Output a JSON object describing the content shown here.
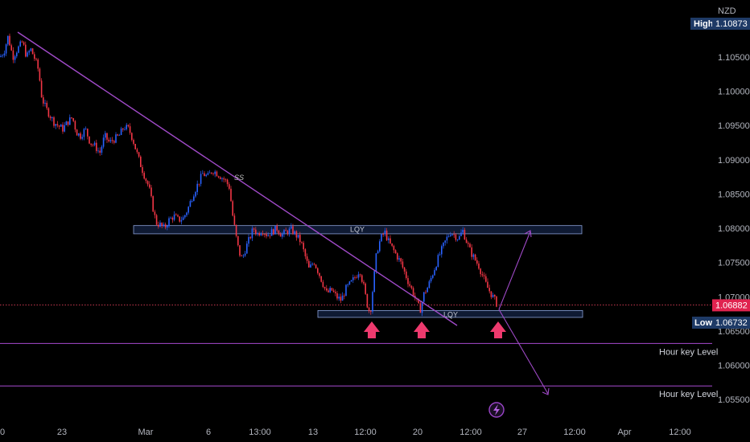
{
  "chart_data": {
    "type": "candlestick",
    "currency": "NZD",
    "y_ticks": [
      "1.10500",
      "1.10000",
      "1.09500",
      "1.09000",
      "1.08500",
      "1.08000",
      "1.07500",
      "1.07000",
      "1.06500",
      "1.06000",
      "1.05500"
    ],
    "ylim": [
      1.0528,
      1.1125
    ],
    "x_ticks": [
      "0",
      "23",
      "Mar",
      "6",
      "13:00",
      "13",
      "12:00",
      "20",
      "12:00",
      "27",
      "12:00",
      "Apr",
      "12:00"
    ],
    "high": {
      "label": "High",
      "value": "1.10873"
    },
    "low": {
      "label": "Low",
      "value": "1.06732"
    },
    "last": {
      "value": "1.06882",
      "price": 1.06882
    },
    "zones": [
      {
        "label": "LQY",
        "top": 1.0804,
        "bottom": 1.0792
      },
      {
        "label": "LQY",
        "top": 1.068,
        "bottom": 1.067
      }
    ],
    "key_levels": [
      {
        "label": "Hour key Level",
        "price": 1.0632
      },
      {
        "label": "Hour key Level",
        "price": 1.057
      }
    ],
    "trendline_label": "SS",
    "price_path": [
      [
        0,
        1.105
      ],
      [
        5,
        1.1058
      ],
      [
        10,
        1.108
      ],
      [
        16,
        1.105
      ],
      [
        22,
        1.1062
      ],
      [
        28,
        1.1072
      ],
      [
        33,
        1.105
      ],
      [
        38,
        1.1062
      ],
      [
        44,
        1.1045
      ],
      [
        48,
        1.103
      ],
      [
        52,
        1.099
      ],
      [
        57,
        1.0975
      ],
      [
        62,
        1.0965
      ],
      [
        67,
        1.0955
      ],
      [
        72,
        1.095
      ],
      [
        78,
        1.0945
      ],
      [
        84,
        1.0955
      ],
      [
        90,
        1.0962
      ],
      [
        95,
        1.094
      ],
      [
        100,
        1.0935
      ],
      [
        106,
        1.0945
      ],
      [
        112,
        1.0925
      ],
      [
        118,
        1.092
      ],
      [
        124,
        1.091
      ],
      [
        130,
        1.0935
      ],
      [
        136,
        1.0925
      ],
      [
        142,
        1.093
      ],
      [
        148,
        1.0935
      ],
      [
        154,
        1.0948
      ],
      [
        160,
        1.0945
      ],
      [
        165,
        1.093
      ],
      [
        170,
        1.091
      ],
      [
        174,
        1.0895
      ],
      [
        180,
        1.0875
      ],
      [
        185,
        1.086
      ],
      [
        190,
        1.083
      ],
      [
        194,
        1.0808
      ],
      [
        199,
        1.0805
      ],
      [
        204,
        1.08
      ],
      [
        210,
        1.0812
      ],
      [
        216,
        1.0818
      ],
      [
        222,
        1.0812
      ],
      [
        228,
        1.0815
      ],
      [
        234,
        1.083
      ],
      [
        240,
        1.085
      ],
      [
        246,
        1.0865
      ],
      [
        252,
        1.088
      ],
      [
        258,
        1.0875
      ],
      [
        264,
        1.0885
      ],
      [
        270,
        1.088
      ],
      [
        275,
        1.0875
      ],
      [
        280,
        1.087
      ],
      [
        285,
        1.086
      ],
      [
        289,
        1.082
      ],
      [
        293,
        1.079
      ],
      [
        297,
        1.0765
      ],
      [
        301,
        1.0755
      ],
      [
        305,
        1.077
      ],
      [
        310,
        1.0785
      ],
      [
        315,
        1.08
      ],
      [
        320,
        1.0792
      ],
      [
        326,
        1.0798
      ],
      [
        332,
        1.079
      ],
      [
        338,
        1.0795
      ],
      [
        344,
        1.08
      ],
      [
        350,
        1.079
      ],
      [
        356,
        1.0795
      ],
      [
        362,
        1.0798
      ],
      [
        368,
        1.079
      ],
      [
        374,
        1.078
      ],
      [
        379,
        1.076
      ],
      [
        384,
        1.074
      ],
      [
        390,
        1.0752
      ],
      [
        396,
        1.0735
      ],
      [
        401,
        1.072
      ],
      [
        406,
        1.0705
      ],
      [
        412,
        1.071
      ],
      [
        418,
        1.07
      ],
      [
        424,
        1.0695
      ],
      [
        430,
        1.0712
      ],
      [
        436,
        1.072
      ],
      [
        442,
        1.073
      ],
      [
        447,
        1.074
      ],
      [
        452,
        1.0715
      ],
      [
        456,
        1.069
      ],
      [
        460,
        1.0675
      ],
      [
        464,
        1.072
      ],
      [
        468,
        1.0765
      ],
      [
        473,
        1.0785
      ],
      [
        478,
        1.0795
      ],
      [
        483,
        1.078
      ],
      [
        488,
        1.077
      ],
      [
        493,
        1.076
      ],
      [
        498,
        1.075
      ],
      [
        503,
        1.0735
      ],
      [
        508,
        1.072
      ],
      [
        512,
        1.071
      ],
      [
        517,
        1.0695
      ],
      [
        522,
        1.068
      ],
      [
        527,
        1.0705
      ],
      [
        532,
        1.0715
      ],
      [
        538,
        1.0735
      ],
      [
        544,
        1.0755
      ],
      [
        550,
        1.0772
      ],
      [
        555,
        1.0785
      ],
      [
        560,
        1.0795
      ],
      [
        565,
        1.079
      ],
      [
        570,
        1.0785
      ],
      [
        575,
        1.0797
      ],
      [
        580,
        1.078
      ],
      [
        585,
        1.0765
      ],
      [
        590,
        1.0755
      ],
      [
        595,
        1.0745
      ],
      [
        600,
        1.073
      ],
      [
        605,
        1.0715
      ],
      [
        610,
        1.0705
      ],
      [
        615,
        1.0695
      ],
      [
        618,
        1.0688
      ]
    ]
  }
}
